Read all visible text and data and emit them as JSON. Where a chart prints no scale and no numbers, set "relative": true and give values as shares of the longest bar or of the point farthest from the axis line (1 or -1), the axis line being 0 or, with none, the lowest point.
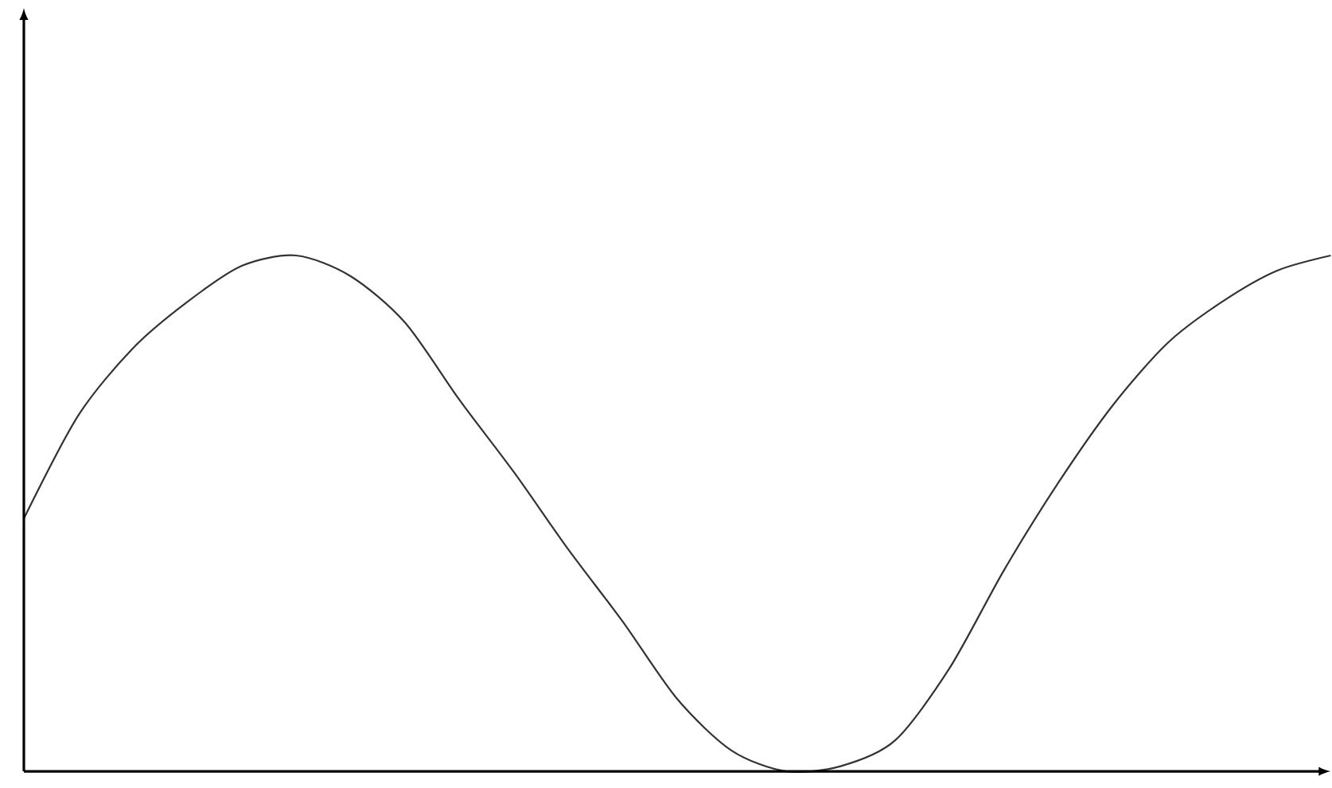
{
  "chart_data": {
    "type": "line",
    "relative": true,
    "categories": [
      null,
      null,
      null,
      null,
      null,
      null,
      null,
      null,
      null,
      null,
      null,
      null,
      null,
      null,
      null,
      null,
      null,
      null,
      null,
      null,
      null,
      null,
      null,
      null,
      null
    ],
    "series": [
      {
        "color": "#333333",
        "values": [
          0.49,
          0.69,
          0.82,
          0.91,
          0.98,
          1.0,
          0.96,
          0.87,
          0.72,
          0.58,
          0.43,
          0.29,
          0.14,
          0.04,
          0.0,
          0.01,
          0.06,
          0.2,
          0.39,
          0.56,
          0.71,
          0.83,
          0.91,
          0.97,
          1.0
        ]
      }
    ],
    "marker": "none",
    "line_style": "solid"
  }
}
